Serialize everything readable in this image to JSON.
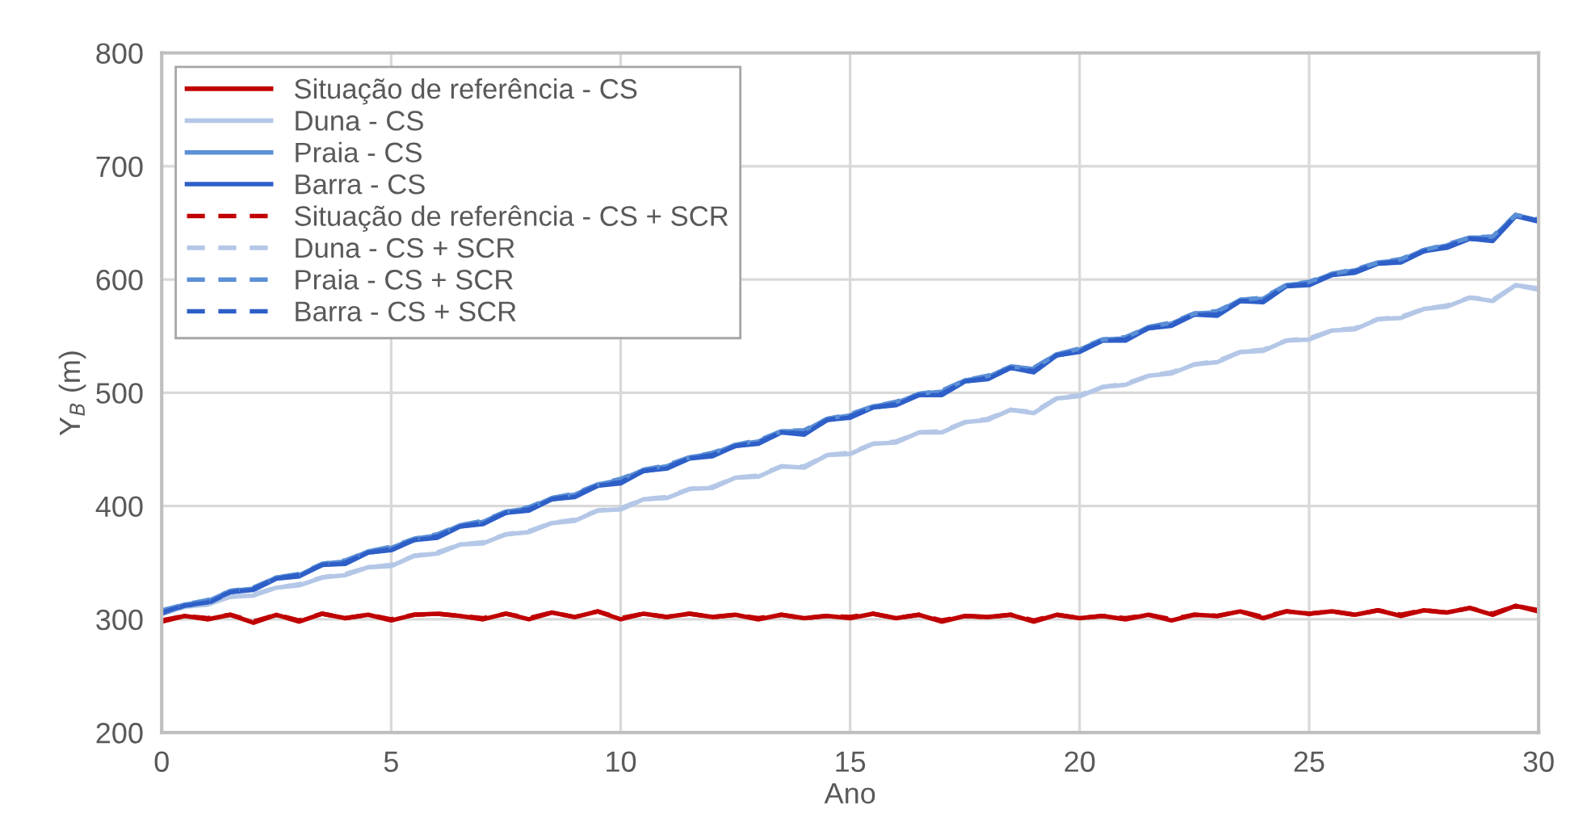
{
  "chart_data": {
    "type": "line",
    "xlabel": "Ano",
    "ylabel": "Y$_{B}$ (m)",
    "x": [
      0,
      0.5,
      1,
      1.5,
      2,
      2.5,
      3,
      3.5,
      4,
      4.5,
      5,
      5.5,
      6,
      6.5,
      7,
      7.5,
      8,
      8.5,
      9,
      9.5,
      10,
      10.5,
      11,
      11.5,
      12,
      12.5,
      13,
      13.5,
      14,
      14.5,
      15,
      15.5,
      16,
      16.5,
      17,
      17.5,
      18,
      18.5,
      19,
      19.5,
      20,
      20.5,
      21,
      21.5,
      22,
      22.5,
      23,
      23.5,
      24,
      24.5,
      25,
      25.5,
      26,
      26.5,
      27,
      27.5,
      28,
      28.5,
      29,
      29.5,
      30
    ],
    "xlim": [
      0,
      30
    ],
    "xticks": [
      0,
      5,
      10,
      15,
      20,
      25,
      30
    ],
    "ylim": [
      200,
      800
    ],
    "yticks": [
      200,
      300,
      400,
      500,
      600,
      700,
      800
    ],
    "grid": true,
    "legend": "top left",
    "marker": "none",
    "series": [
      {
        "name": "Situação de referência - CS",
        "color": "#c00000",
        "line_style": "solid",
        "values": [
          298,
          303,
          300,
          304,
          297,
          304,
          298,
          305,
          301,
          304,
          299,
          304,
          305,
          303,
          300,
          305,
          300,
          306,
          302,
          307,
          300,
          305,
          302,
          305,
          302,
          304,
          300,
          304,
          301,
          303,
          301,
          305,
          301,
          304,
          298,
          303,
          302,
          304,
          298,
          304,
          301,
          303,
          300,
          304,
          299,
          304,
          303,
          307,
          301,
          307,
          305,
          307,
          304,
          308,
          303,
          308,
          306,
          310,
          304,
          312,
          307
        ]
      },
      {
        "name": "Duna - CS",
        "color": "#b4c7e7",
        "line_style": "solid",
        "values": [
          305,
          311,
          313,
          320,
          321,
          328,
          330,
          337,
          339,
          346,
          347,
          356,
          358,
          366,
          367,
          375,
          377,
          385,
          387,
          396,
          397,
          406,
          407,
          415,
          416,
          425,
          426,
          435,
          434,
          445,
          446,
          455,
          456,
          465,
          465,
          474,
          476,
          485,
          482,
          495,
          497,
          505,
          507,
          515,
          517,
          525,
          527,
          536,
          537,
          546,
          547,
          555,
          556,
          565,
          566,
          574,
          576,
          584,
          581,
          595,
          591
        ]
      },
      {
        "name": "Praia - CS",
        "color": "#5b8fd6",
        "line_style": "solid",
        "values": [
          307,
          313,
          316,
          325,
          327,
          337,
          339,
          349,
          351,
          360,
          363,
          371,
          374,
          383,
          386,
          395,
          398,
          407,
          410,
          419,
          423,
          432,
          435,
          443,
          446,
          454,
          457,
          466,
          466,
          477,
          480,
          488,
          491,
          499,
          501,
          511,
          514,
          523,
          521,
          534,
          538,
          547,
          548,
          558,
          561,
          570,
          571,
          582,
          583,
          595,
          597,
          605,
          608,
          615,
          617,
          626,
          630,
          637,
          637,
          657,
          652
        ]
      },
      {
        "name": "Barra - CS",
        "color": "#2e5fc8",
        "line_style": "solid",
        "values": [
          305,
          312,
          314,
          324,
          326,
          336,
          338,
          348,
          349,
          359,
          361,
          370,
          372,
          382,
          384,
          394,
          396,
          406,
          408,
          418,
          420,
          431,
          433,
          442,
          444,
          453,
          455,
          465,
          463,
          476,
          478,
          487,
          489,
          498,
          498,
          510,
          512,
          522,
          518,
          533,
          536,
          546,
          546,
          557,
          559,
          569,
          568,
          581,
          580,
          594,
          595,
          604,
          606,
          614,
          615,
          625,
          628,
          636,
          634,
          656,
          651
        ]
      },
      {
        "name": "Situação de referência - CS + SCR",
        "color": "#c00000",
        "line_style": "dashed",
        "values": [
          299,
          303,
          301,
          304,
          298,
          304,
          299,
          305,
          301,
          304,
          300,
          304,
          305,
          303,
          301,
          305,
          301,
          306,
          302,
          307,
          301,
          305,
          302,
          305,
          302,
          304,
          301,
          304,
          301,
          303,
          302,
          305,
          301,
          304,
          299,
          303,
          302,
          304,
          299,
          304,
          301,
          303,
          301,
          304,
          300,
          304,
          303,
          307,
          302,
          307,
          305,
          307,
          304,
          308,
          304,
          308,
          306,
          310,
          305,
          312,
          308
        ]
      },
      {
        "name": "Duna - CS + SCR",
        "color": "#b4c7e7",
        "line_style": "dashed",
        "values": [
          306,
          311,
          314,
          320,
          322,
          328,
          331,
          337,
          340,
          346,
          348,
          356,
          359,
          366,
          368,
          375,
          378,
          385,
          388,
          396,
          398,
          406,
          408,
          415,
          417,
          425,
          427,
          435,
          435,
          445,
          447,
          455,
          457,
          465,
          466,
          474,
          477,
          485,
          483,
          495,
          498,
          505,
          508,
          515,
          518,
          525,
          528,
          536,
          538,
          546,
          548,
          555,
          557,
          565,
          567,
          574,
          577,
          584,
          582,
          595,
          592
        ]
      },
      {
        "name": "Praia - CS + SCR",
        "color": "#5b8fd6",
        "line_style": "dashed",
        "values": [
          308,
          313,
          317,
          325,
          328,
          337,
          340,
          349,
          352,
          360,
          364,
          371,
          375,
          383,
          387,
          395,
          399,
          407,
          411,
          419,
          424,
          432,
          436,
          443,
          447,
          454,
          458,
          466,
          467,
          477,
          481,
          488,
          492,
          499,
          502,
          511,
          515,
          523,
          522,
          534,
          539,
          547,
          549,
          558,
          562,
          570,
          572,
          582,
          584,
          595,
          598,
          605,
          609,
          615,
          618,
          626,
          631,
          637,
          638,
          657,
          653
        ]
      },
      {
        "name": "Barra - CS + SCR",
        "color": "#2e5fc8",
        "line_style": "dashed",
        "values": [
          306,
          312,
          315,
          324,
          327,
          336,
          339,
          348,
          350,
          359,
          362,
          370,
          373,
          382,
          385,
          394,
          397,
          406,
          409,
          418,
          421,
          431,
          434,
          442,
          445,
          453,
          456,
          465,
          464,
          476,
          479,
          487,
          490,
          498,
          499,
          510,
          513,
          522,
          519,
          533,
          537,
          546,
          547,
          557,
          560,
          569,
          569,
          581,
          581,
          594,
          596,
          604,
          607,
          614,
          616,
          625,
          629,
          636,
          635,
          656,
          652
        ]
      }
    ]
  }
}
